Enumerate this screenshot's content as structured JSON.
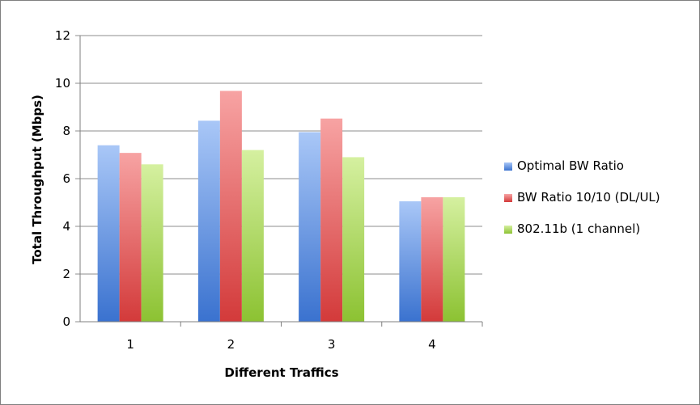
{
  "chart_data": {
    "type": "bar",
    "categories": [
      "1",
      "2",
      "3",
      "4"
    ],
    "series": [
      {
        "name": "Optimal BW Ratio",
        "values": [
          7.4,
          8.43,
          7.95,
          5.05
        ],
        "color": "#4a7fd6"
      },
      {
        "name": "BW Ratio 10/10 (DL/UL)",
        "values": [
          7.08,
          9.68,
          8.52,
          5.22
        ],
        "color": "#dc4a4a"
      },
      {
        "name": "802.11b (1 channel)",
        "values": [
          6.6,
          7.2,
          6.9,
          5.22
        ],
        "color": "#96c83c"
      }
    ],
    "yticks": [
      "0",
      "2",
      "4",
      "6",
      "8",
      "10",
      "12"
    ],
    "xlabel": "Different Traffics",
    "ylabel": "Total Throughput (Mbps)",
    "ylim": [
      0,
      12
    ],
    "grid": true,
    "legend": "right"
  }
}
